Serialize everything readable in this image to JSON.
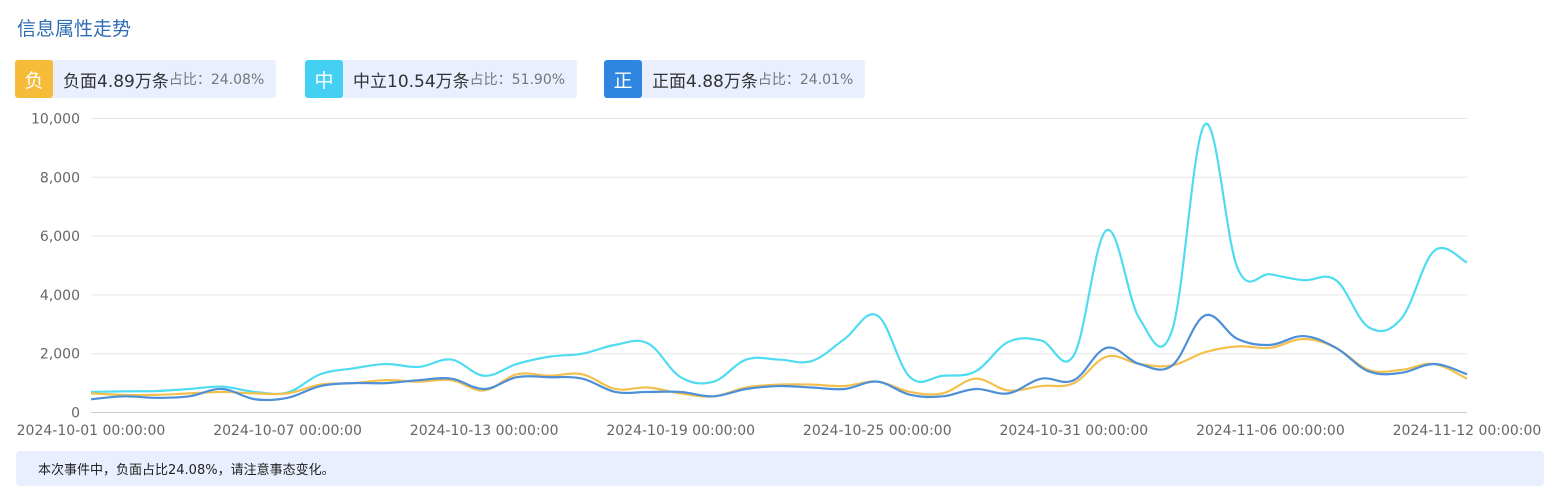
{
  "title": "信息属性走势",
  "stats": [
    {
      "badge": "负",
      "text": "负面4.89万条",
      "ratio_label": "占比：24.08%",
      "color": "#f7bb3a"
    },
    {
      "badge": "中",
      "text": "中立10.54万条",
      "ratio_label": "占比：51.90%",
      "color": "#43d0f3"
    },
    {
      "badge": "正",
      "text": "正面4.88万条",
      "ratio_label": "占比：24.01%",
      "color": "#2e86e0"
    }
  ],
  "note": "本次事件中，负面占比24.08%，请注意事态变化。",
  "chart_data": {
    "type": "line",
    "x_tick_labels": [
      "2024-10-01 00:00:00",
      "2024-10-07 00:00:00",
      "2024-10-13 00:00:00",
      "2024-10-19 00:00:00",
      "2024-10-25 00:00:00",
      "2024-10-31 00:00:00",
      "2024-11-06 00:00:00",
      "2024-11-12 00:00:00"
    ],
    "x": [
      "2024-10-01",
      "2024-10-02",
      "2024-10-03",
      "2024-10-04",
      "2024-10-05",
      "2024-10-06",
      "2024-10-07",
      "2024-10-08",
      "2024-10-09",
      "2024-10-10",
      "2024-10-11",
      "2024-10-12",
      "2024-10-13",
      "2024-10-14",
      "2024-10-15",
      "2024-10-16",
      "2024-10-17",
      "2024-10-18",
      "2024-10-19",
      "2024-10-20",
      "2024-10-21",
      "2024-10-22",
      "2024-10-23",
      "2024-10-24",
      "2024-10-25",
      "2024-10-26",
      "2024-10-27",
      "2024-10-28",
      "2024-10-29",
      "2024-10-30",
      "2024-10-31",
      "2024-11-01",
      "2024-11-02",
      "2024-11-03",
      "2024-11-04",
      "2024-11-05",
      "2024-11-06",
      "2024-11-07",
      "2024-11-08",
      "2024-11-09",
      "2024-11-10",
      "2024-11-11",
      "2024-11-12"
    ],
    "y_ticks": [
      0,
      2000,
      4000,
      6000,
      8000,
      10000
    ],
    "y_tick_labels": [
      "0",
      "2,000",
      "4,000",
      "6,000",
      "8,000",
      "10,000"
    ],
    "ylim": [
      0,
      10000
    ],
    "grid": true,
    "series": [
      {
        "name": "中立",
        "color": "#4fdcf0",
        "values": [
          700,
          720,
          730,
          800,
          880,
          700,
          680,
          1300,
          1500,
          1650,
          1550,
          1800,
          1250,
          1650,
          1900,
          2000,
          2300,
          2350,
          1200,
          1050,
          1800,
          1800,
          1750,
          2500,
          3300,
          1200,
          1250,
          1400,
          2400,
          2450,
          1950,
          6200,
          3200,
          2800,
          9800,
          4900,
          4700,
          4500,
          4500,
          2900,
          3200,
          5500,
          5100
        ]
      },
      {
        "name": "负面",
        "color": "#f3c04d",
        "values": [
          650,
          600,
          600,
          650,
          700,
          650,
          650,
          950,
          1000,
          1100,
          1050,
          1100,
          750,
          1300,
          1250,
          1300,
          800,
          850,
          650,
          550,
          850,
          950,
          950,
          900,
          1050,
          700,
          650,
          1150,
          750,
          900,
          1000,
          1900,
          1650,
          1600,
          2050,
          2250,
          2200,
          2500,
          2200,
          1450,
          1450,
          1650,
          1150
        ]
      },
      {
        "name": "正面",
        "color": "#4d8fd8",
        "values": [
          450,
          550,
          500,
          550,
          800,
          450,
          500,
          900,
          1000,
          1000,
          1100,
          1150,
          800,
          1200,
          1200,
          1150,
          700,
          700,
          700,
          550,
          800,
          900,
          850,
          800,
          1050,
          600,
          550,
          800,
          650,
          1150,
          1100,
          2200,
          1650,
          1600,
          3300,
          2500,
          2300,
          2600,
          2200,
          1400,
          1350,
          1650,
          1300
        ]
      }
    ]
  }
}
